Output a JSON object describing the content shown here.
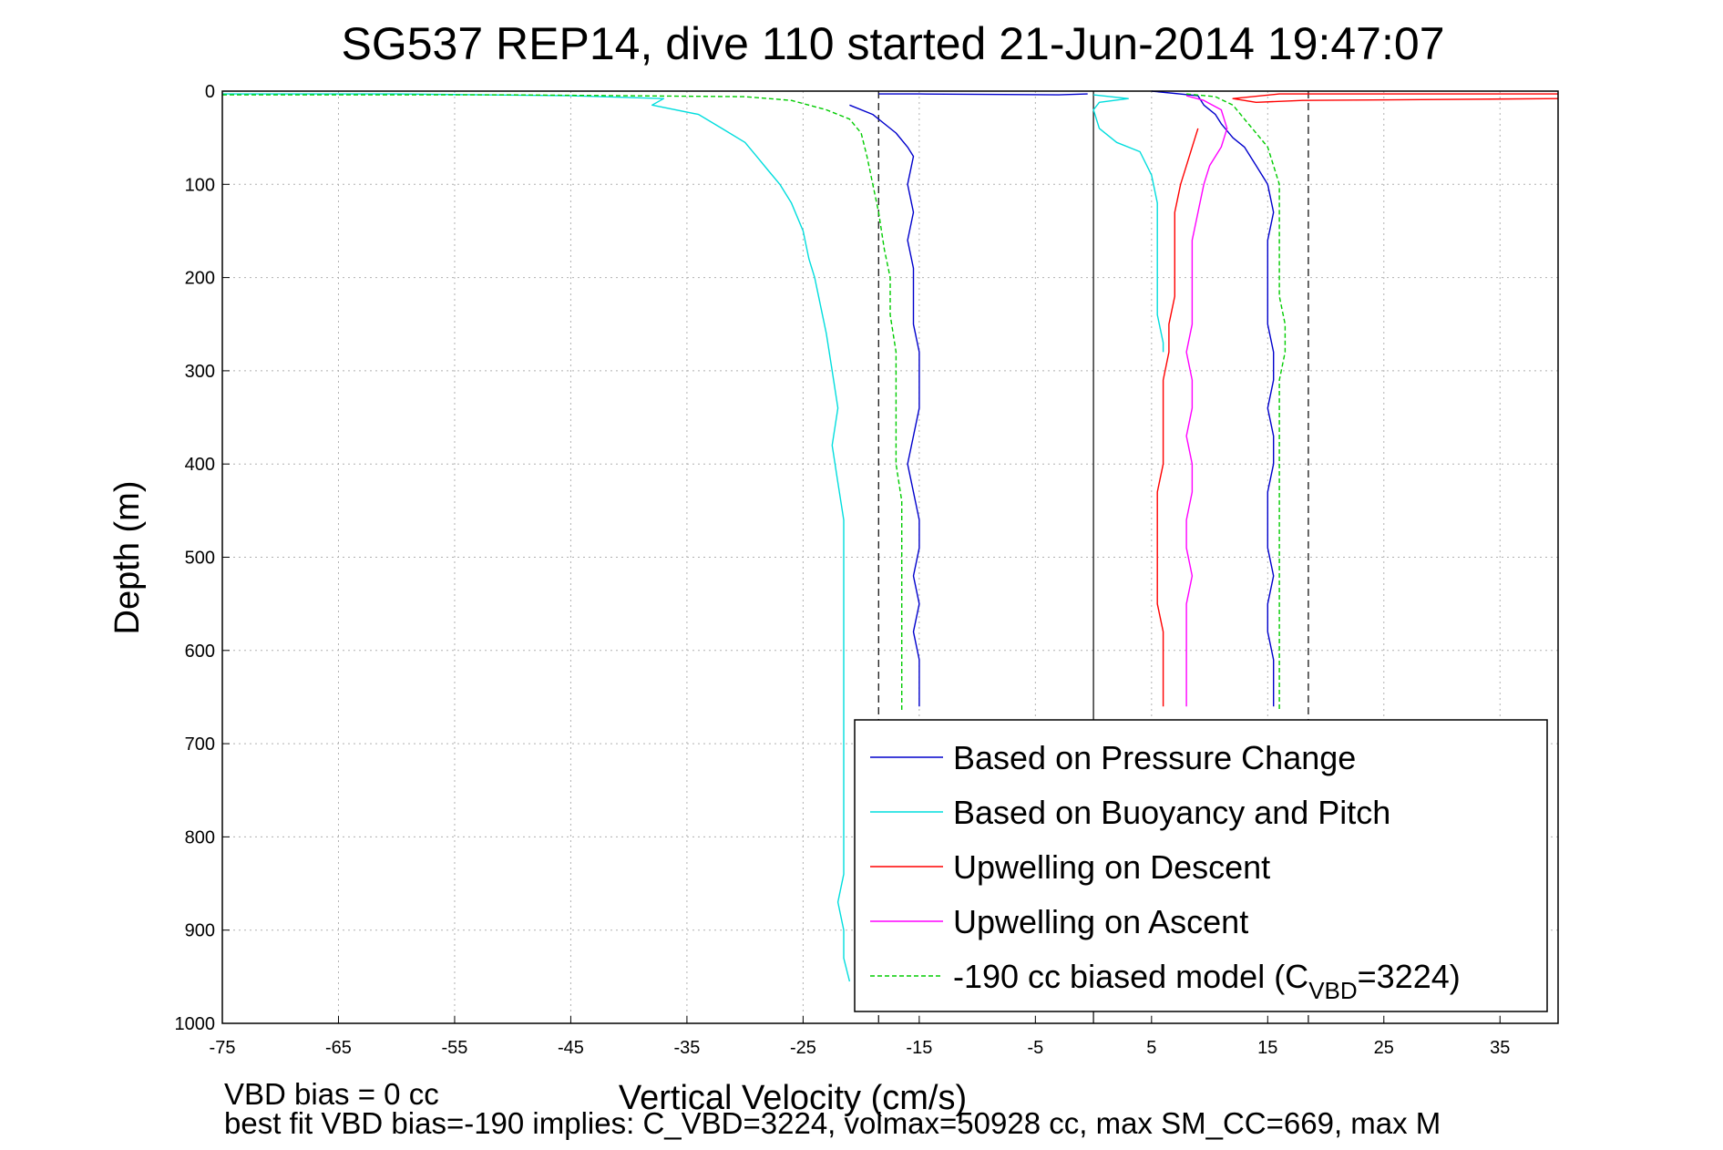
{
  "chart_data": {
    "type": "line",
    "title": "SG537 REP14, dive 110 started 21-Jun-2014 19:47:07",
    "xlabel": "Vertical Velocity (cm/s)",
    "ylabel": "Depth (m)",
    "xlim": [
      -75,
      40
    ],
    "ylim": [
      0,
      1000
    ],
    "y_reversed": true,
    "grid": true,
    "xticks": [
      -75,
      -65,
      -55,
      -45,
      -35,
      -25,
      -15,
      -5,
      5,
      15,
      25,
      35
    ],
    "yticks": [
      0,
      100,
      200,
      300,
      400,
      500,
      600,
      700,
      800,
      900,
      1000
    ],
    "legend_position": "bottom-right",
    "reference_lines": [
      {
        "x": -18.5,
        "style": "dashed"
      },
      {
        "x": 0,
        "style": "solid"
      },
      {
        "x": 18.5,
        "style": "dashed"
      }
    ],
    "series": [
      {
        "name": "Based on Pressure Change",
        "color": "#0000cc",
        "style": "solid",
        "segments": [
          {
            "points": [
              [
                -18.5,
                3
              ],
              [
                -15,
                3
              ],
              [
                -3,
                4
              ],
              [
                -0.5,
                3
              ]
            ]
          },
          {
            "points": [
              [
                -21,
                15
              ],
              [
                -19,
                25
              ],
              [
                -17,
                45
              ],
              [
                -16,
                60
              ],
              [
                -15.5,
                70
              ],
              [
                -16,
                100
              ],
              [
                -15.5,
                130
              ],
              [
                -16,
                160
              ],
              [
                -15.5,
                190
              ],
              [
                -15.5,
                220
              ],
              [
                -15.5,
                250
              ],
              [
                -15,
                280
              ],
              [
                -15,
                310
              ],
              [
                -15,
                340
              ],
              [
                -15.5,
                370
              ],
              [
                -16,
                400
              ],
              [
                -15.5,
                430
              ],
              [
                -15,
                460
              ],
              [
                -15,
                490
              ],
              [
                -15.5,
                520
              ],
              [
                -15,
                550
              ],
              [
                -15.5,
                580
              ],
              [
                -15,
                610
              ],
              [
                -15,
                640
              ],
              [
                -15,
                660
              ]
            ]
          },
          {
            "points": [
              [
                5,
                0
              ],
              [
                9,
                5
              ],
              [
                9.5,
                15
              ],
              [
                10.5,
                25
              ],
              [
                11,
                35
              ],
              [
                12,
                50
              ],
              [
                13,
                60
              ],
              [
                14,
                80
              ],
              [
                15,
                100
              ],
              [
                15.5,
                130
              ],
              [
                15,
                160
              ],
              [
                15,
                190
              ],
              [
                15,
                220
              ],
              [
                15,
                250
              ],
              [
                15.5,
                280
              ],
              [
                15.5,
                310
              ],
              [
                15,
                340
              ],
              [
                15.5,
                370
              ],
              [
                15.5,
                400
              ],
              [
                15,
                430
              ],
              [
                15,
                460
              ],
              [
                15,
                490
              ],
              [
                15.5,
                520
              ],
              [
                15,
                550
              ],
              [
                15,
                580
              ],
              [
                15.5,
                610
              ],
              [
                15.5,
                640
              ],
              [
                15.5,
                660
              ]
            ]
          }
        ]
      },
      {
        "name": "Based on Buoyancy and Pitch",
        "color": "#00dddd",
        "style": "solid",
        "segments": [
          {
            "points": [
              [
                -75,
                3
              ],
              [
                -60,
                3
              ],
              [
                -45,
                5
              ],
              [
                -37,
                8
              ],
              [
                -38,
                15
              ],
              [
                -34,
                25
              ],
              [
                -32,
                40
              ],
              [
                -30,
                55
              ],
              [
                -29,
                70
              ],
              [
                -28,
                85
              ],
              [
                -27,
                100
              ],
              [
                -26,
                120
              ],
              [
                -25,
                150
              ],
              [
                -24.5,
                180
              ],
              [
                -24,
                200
              ],
              [
                -23.5,
                230
              ],
              [
                -23,
                260
              ],
              [
                -22.5,
                300
              ],
              [
                -22,
                340
              ],
              [
                -22.5,
                380
              ],
              [
                -22,
                420
              ],
              [
                -21.5,
                460
              ],
              [
                -21.5,
                500
              ],
              [
                -21.5,
                550
              ],
              [
                -21.5,
                600
              ],
              [
                -21.5,
                650
              ],
              [
                -21.5,
                700
              ],
              [
                -21.5,
                750
              ],
              [
                -21.5,
                800
              ],
              [
                -21.5,
                840
              ],
              [
                -22,
                870
              ],
              [
                -21.5,
                900
              ],
              [
                -21.5,
                930
              ],
              [
                -21,
                955
              ]
            ]
          },
          {
            "points": [
              [
                0,
                4
              ],
              [
                3,
                8
              ],
              [
                0.5,
                12
              ],
              [
                0,
                20
              ],
              [
                0.5,
                40
              ],
              [
                2,
                55
              ],
              [
                4,
                65
              ],
              [
                5,
                90
              ],
              [
                5.5,
                120
              ],
              [
                5.5,
                160
              ],
              [
                5.5,
                200
              ],
              [
                5.5,
                240
              ],
              [
                6,
                270
              ],
              [
                6,
                280
              ]
            ]
          }
        ]
      },
      {
        "name": "Upwelling on Descent",
        "color": "#ff0000",
        "style": "solid",
        "segments": [
          {
            "points": [
              [
                40,
                3
              ],
              [
                16,
                3
              ],
              [
                12,
                8
              ],
              [
                14,
                12
              ],
              [
                18,
                10
              ],
              [
                40,
                8
              ]
            ]
          },
          {
            "points": [
              [
                9,
                40
              ],
              [
                8.5,
                60
              ],
              [
                8,
                80
              ],
              [
                7.5,
                100
              ],
              [
                7,
                130
              ],
              [
                7,
                160
              ],
              [
                7,
                190
              ],
              [
                7,
                220
              ],
              [
                6.5,
                250
              ],
              [
                6.5,
                280
              ],
              [
                6,
                310
              ],
              [
                6,
                340
              ],
              [
                6,
                370
              ],
              [
                6,
                400
              ],
              [
                5.5,
                430
              ],
              [
                5.5,
                460
              ],
              [
                5.5,
                490
              ],
              [
                5.5,
                520
              ],
              [
                5.5,
                550
              ],
              [
                6,
                580
              ],
              [
                6,
                610
              ],
              [
                6,
                640
              ],
              [
                6,
                660
              ]
            ]
          }
        ]
      },
      {
        "name": "Upwelling on Ascent",
        "color": "#ff00ff",
        "style": "solid",
        "segments": [
          {
            "points": [
              [
                8,
                5
              ],
              [
                9.5,
                10
              ],
              [
                11,
                20
              ],
              [
                11.5,
                40
              ],
              [
                11,
                60
              ],
              [
                10,
                80
              ],
              [
                9.5,
                100
              ],
              [
                9,
                130
              ],
              [
                8.5,
                160
              ],
              [
                8.5,
                190
              ],
              [
                8.5,
                220
              ],
              [
                8.5,
                250
              ],
              [
                8,
                280
              ],
              [
                8.5,
                310
              ],
              [
                8.5,
                340
              ],
              [
                8,
                370
              ],
              [
                8.5,
                400
              ],
              [
                8.5,
                430
              ],
              [
                8,
                460
              ],
              [
                8,
                490
              ],
              [
                8.5,
                520
              ],
              [
                8,
                550
              ],
              [
                8,
                580
              ],
              [
                8,
                610
              ],
              [
                8,
                640
              ],
              [
                8,
                660
              ]
            ]
          }
        ]
      },
      {
        "name": "-190 cc biased model (C_VBD=3224)",
        "color": "#00cc00",
        "style": "dashed",
        "segments": [
          {
            "points": [
              [
                -75,
                4
              ],
              [
                -50,
                4
              ],
              [
                -30,
                6
              ],
              [
                -26,
                10
              ],
              [
                -23,
                20
              ],
              [
                -21,
                30
              ],
              [
                -20,
                45
              ],
              [
                -19.5,
                70
              ],
              [
                -19,
                100
              ],
              [
                -18.5,
                130
              ],
              [
                -18,
                170
              ],
              [
                -17.5,
                200
              ],
              [
                -17.5,
                240
              ],
              [
                -17,
                280
              ],
              [
                -17,
                320
              ],
              [
                -17,
                360
              ],
              [
                -17,
                400
              ],
              [
                -16.5,
                440
              ],
              [
                -16.5,
                480
              ],
              [
                -16.5,
                520
              ],
              [
                -16.5,
                560
              ],
              [
                -16.5,
                600
              ],
              [
                -16.5,
                640
              ],
              [
                -16.5,
                665
              ]
            ]
          },
          {
            "points": [
              [
                8,
                3
              ],
              [
                10.5,
                6
              ],
              [
                12,
                15
              ],
              [
                13,
                30
              ],
              [
                14,
                45
              ],
              [
                15,
                60
              ],
              [
                15.5,
                80
              ],
              [
                16,
                100
              ],
              [
                16,
                130
              ],
              [
                16,
                160
              ],
              [
                16,
                190
              ],
              [
                16,
                220
              ],
              [
                16.5,
                250
              ],
              [
                16.5,
                280
              ],
              [
                16,
                310
              ],
              [
                16,
                340
              ],
              [
                16,
                370
              ],
              [
                16,
                400
              ],
              [
                16,
                430
              ],
              [
                16,
                460
              ],
              [
                16,
                490
              ],
              [
                16,
                520
              ],
              [
                16,
                550
              ],
              [
                16,
                580
              ],
              [
                16,
                610
              ],
              [
                16,
                640
              ],
              [
                16,
                665
              ]
            ]
          }
        ]
      }
    ],
    "legend": [
      {
        "label": "Based on Pressure Change",
        "color": "#0000cc",
        "style": "solid"
      },
      {
        "label": "Based on Buoyancy and Pitch",
        "color": "#00dddd",
        "style": "solid"
      },
      {
        "label": "Upwelling on Descent",
        "color": "#ff0000",
        "style": "solid"
      },
      {
        "label": "Upwelling on Ascent",
        "color": "#ff00ff",
        "style": "solid"
      },
      {
        "label_pre": "-190 cc biased model (C",
        "label_sub": "VBD",
        "label_post": "=3224)",
        "color": "#00cc00",
        "style": "dashed"
      }
    ],
    "footnotes": [
      "VBD bias = 0 cc",
      "best fit VBD bias=-190 implies: C_VBD=3224, volmax=50928 cc, max SM_CC=669, max M"
    ]
  }
}
